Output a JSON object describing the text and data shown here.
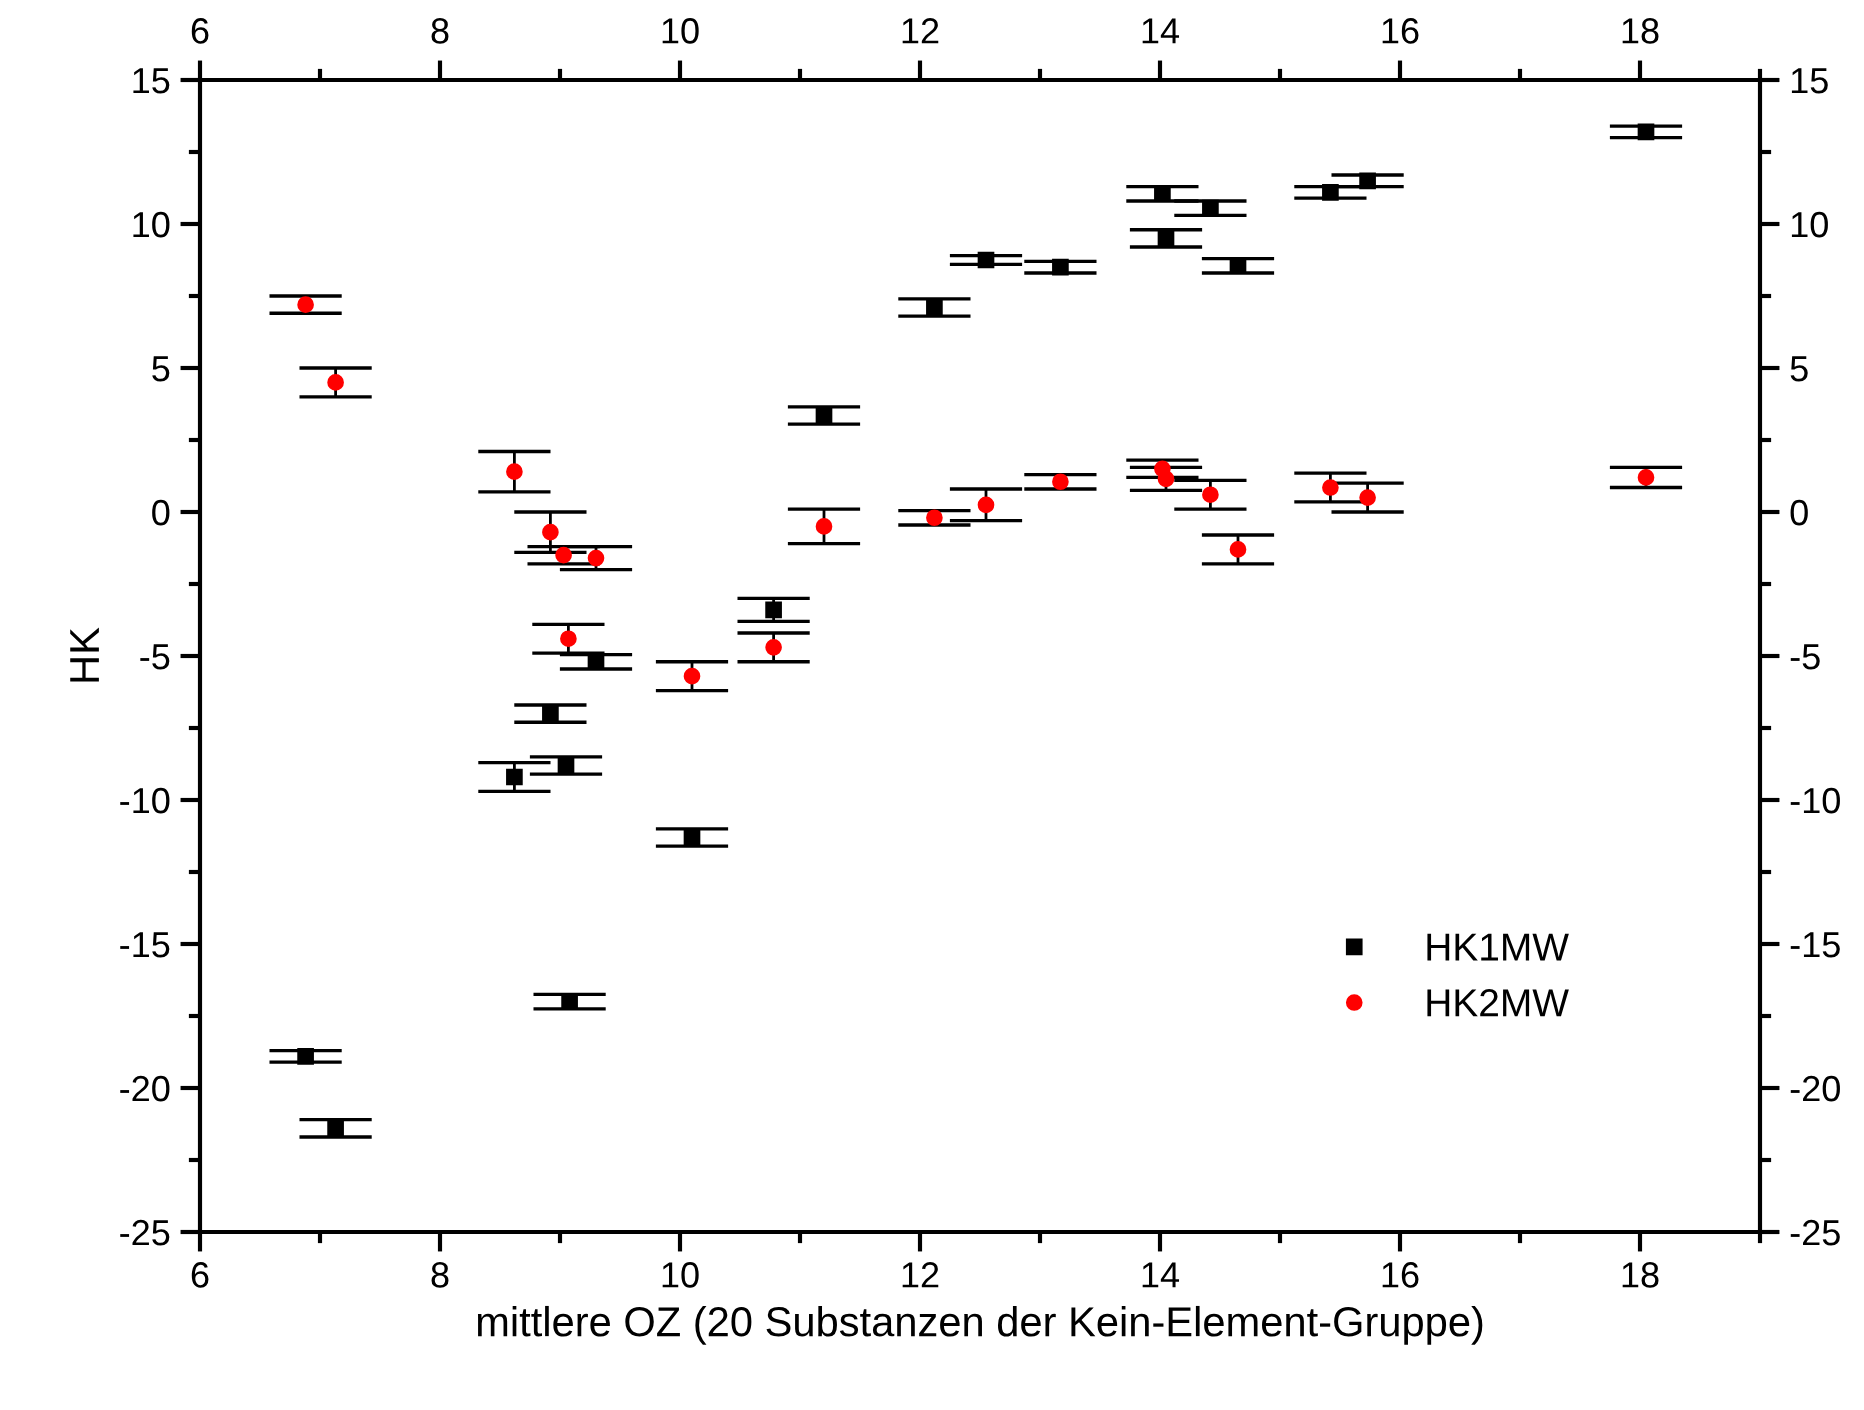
{
  "chart_data": {
    "type": "scatter",
    "xlabel": "mittlere OZ (20 Substanzen der Kein-Element-Gruppe)",
    "ylabel": "HK",
    "xlim": [
      6,
      19
    ],
    "xticks": [
      6,
      8,
      10,
      12,
      14,
      16,
      18
    ],
    "ylim": [
      -25,
      15
    ],
    "yticks": [
      -25,
      -20,
      -15,
      -10,
      -5,
      0,
      5,
      10,
      15
    ],
    "x2lim": [
      6,
      19
    ],
    "x2ticks": [
      6,
      8,
      10,
      12,
      14,
      16,
      18
    ],
    "y2lim": [
      -25,
      15
    ],
    "y2ticks": [
      -25,
      -20,
      -15,
      -10,
      -5,
      0,
      5,
      10,
      15
    ],
    "legend": "bottom right",
    "grid": false,
    "series": [
      {
        "name": "HK1MW",
        "color": "#000000",
        "marker": "square",
        "x": [
          6.88,
          7.13,
          8.62,
          8.92,
          9.05,
          9.08,
          9.3,
          10.1,
          10.78,
          11.2,
          12.12,
          12.55,
          13.17,
          14.02,
          14.05,
          14.42,
          14.65,
          15.42,
          15.73,
          18.05
        ],
        "values": [
          -18.9,
          -21.4,
          -9.2,
          -7.0,
          -8.8,
          -17.0,
          -5.2,
          -11.3,
          -3.4,
          3.35,
          7.1,
          8.75,
          8.5,
          11.05,
          9.5,
          10.55,
          8.55,
          11.1,
          11.5,
          13.2
        ],
        "errors": [
          0.2,
          0.3,
          0.5,
          0.3,
          0.3,
          0.25,
          0.25,
          0.3,
          0.4,
          0.3,
          0.3,
          0.15,
          0.2,
          0.25,
          0.3,
          0.25,
          0.25,
          0.2,
          0.2,
          0.2
        ]
      },
      {
        "name": "HK2MW",
        "color": "#ff0000",
        "marker": "circle",
        "x": [
          6.88,
          7.13,
          8.62,
          8.92,
          9.03,
          9.07,
          9.3,
          10.1,
          10.78,
          11.2,
          12.12,
          12.55,
          13.17,
          14.02,
          14.05,
          14.42,
          14.65,
          15.42,
          15.73,
          18.05
        ],
        "values": [
          7.2,
          4.5,
          1.4,
          -0.7,
          -1.5,
          -4.4,
          -1.6,
          -5.7,
          -4.7,
          -0.5,
          -0.2,
          0.25,
          1.05,
          1.5,
          1.15,
          0.6,
          -1.3,
          0.85,
          0.5,
          1.2
        ],
        "errors": [
          0.3,
          0.5,
          0.7,
          0.7,
          0.3,
          0.5,
          0.4,
          0.5,
          0.5,
          0.6,
          0.25,
          0.55,
          0.25,
          0.3,
          0.4,
          0.5,
          0.5,
          0.5,
          0.5,
          0.35
        ]
      }
    ]
  }
}
